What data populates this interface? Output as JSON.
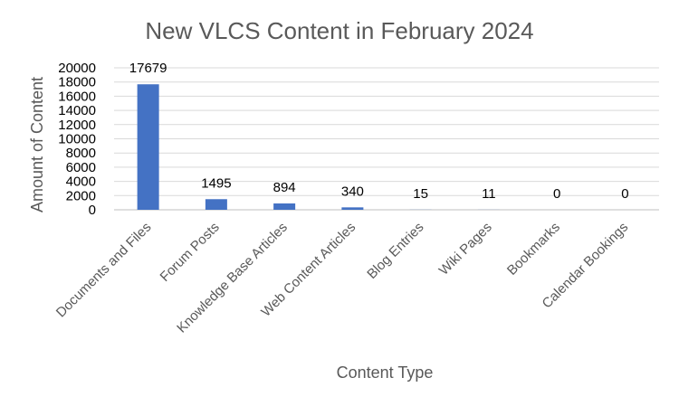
{
  "chart_data": {
    "type": "bar",
    "title": "New VLCS Content in February 2024",
    "xlabel": "Content Type",
    "ylabel": "Amount of Content",
    "categories": [
      "Documents and Files",
      "Forum Posts",
      "Knowledge Base Articles",
      "Web Content Articles",
      "Blog Entries",
      "Wiki Pages",
      "Bookmarks",
      "Calendar Bookings"
    ],
    "values": [
      17679,
      1495,
      894,
      340,
      15,
      11,
      0,
      0
    ],
    "ylim": [
      0,
      20000
    ],
    "yticks": [
      0,
      2000,
      4000,
      6000,
      8000,
      10000,
      12000,
      14000,
      16000,
      18000,
      20000
    ],
    "grid": true,
    "legend": "none",
    "bar_color": "#4472C4"
  }
}
